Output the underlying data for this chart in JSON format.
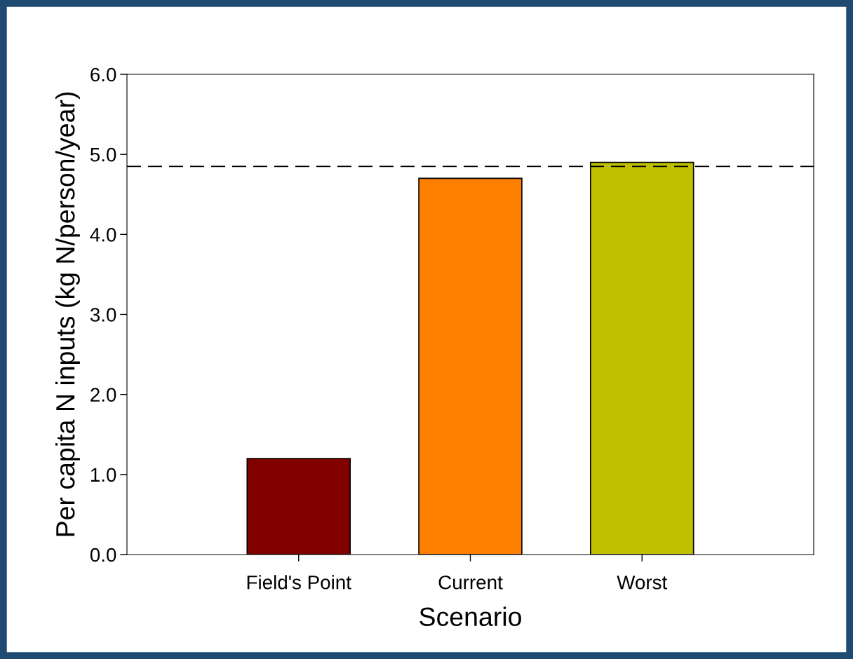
{
  "chart_data": {
    "type": "bar",
    "xlabel": "Scenario",
    "ylabel": "Per capita N inputs (kg N/person/year)",
    "categories": [
      "Field's Point",
      "Current",
      "Worst"
    ],
    "values": [
      1.2,
      4.7,
      4.9
    ],
    "colors": [
      "#800000",
      "#ff8000",
      "#c0c000"
    ],
    "ylim": [
      0,
      6
    ],
    "yticks": [
      {
        "value": 0,
        "label": "0.0"
      },
      {
        "value": 1,
        "label": "1.0"
      },
      {
        "value": 2,
        "label": "2.0"
      },
      {
        "value": 3,
        "label": "3.0"
      },
      {
        "value": 4,
        "label": "4.0"
      },
      {
        "value": 5,
        "label": "5.0"
      },
      {
        "value": 6,
        "label": "6.0"
      }
    ],
    "ref_lines": [
      {
        "axis": "y",
        "value": 4.85,
        "color": "#000000",
        "line_style": "dashed"
      }
    ],
    "grid": false,
    "legend": false
  }
}
